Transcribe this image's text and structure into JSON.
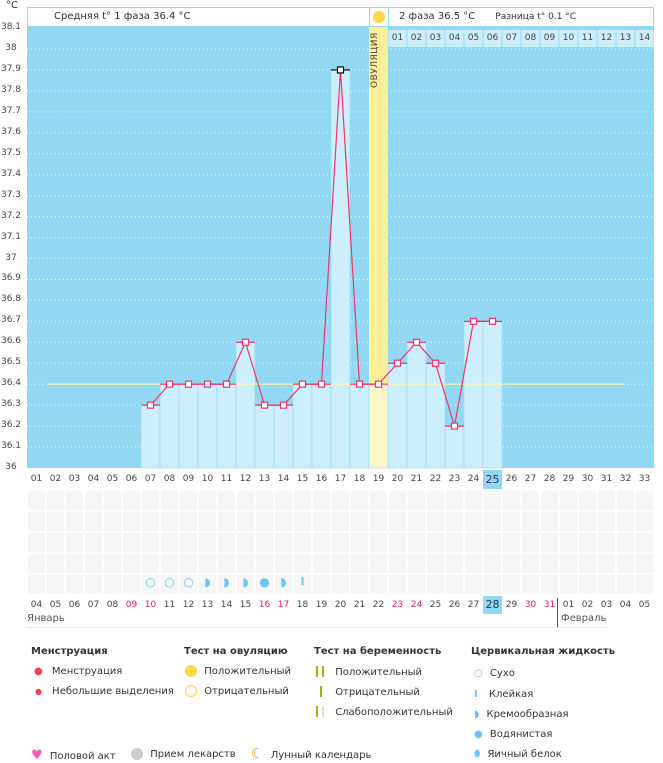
{
  "unit": "°C",
  "header": {
    "phase1_label": "Средняя t° 1 фаза 36.4 °C",
    "phase2_label": "2 фаза 36.5 °C",
    "diff_label": "Разница t° 0.1 °C",
    "ovulation_label": "ОВУЛЯЦИЯ"
  },
  "y_ticks": [
    "38.1",
    "38",
    "37.9",
    "37.8",
    "37.7",
    "37.6",
    "37.5",
    "37.4",
    "37.3",
    "37.2",
    "37.1",
    "37",
    "36.9",
    "36.8",
    "36.7",
    "36.6",
    "36.5",
    "36.4",
    "36.3",
    "36.2",
    "36.1",
    "36"
  ],
  "phase2_days": [
    "01",
    "02",
    "03",
    "04",
    "05",
    "06",
    "07",
    "08",
    "09",
    "10",
    "11",
    "12",
    "13",
    "14"
  ],
  "cycle_days": [
    "01",
    "02",
    "03",
    "04",
    "05",
    "06",
    "07",
    "08",
    "09",
    "10",
    "11",
    "12",
    "13",
    "14",
    "15",
    "16",
    "17",
    "18",
    "19",
    "20",
    "21",
    "22",
    "23",
    "24",
    "25",
    "26",
    "27",
    "28",
    "29",
    "30",
    "31",
    "32",
    "33"
  ],
  "current_cycle_day_index": 24,
  "ovulation_day": 19,
  "coverline": 36.4,
  "temperatures": [
    null,
    null,
    null,
    null,
    null,
    null,
    36.3,
    36.4,
    36.4,
    36.4,
    36.4,
    36.6,
    36.3,
    36.3,
    36.4,
    36.4,
    37.9,
    36.4,
    36.4,
    36.5,
    36.6,
    36.5,
    36.2,
    36.7,
    36.7,
    null,
    null,
    null,
    null,
    null,
    null,
    null,
    null
  ],
  "calendar_dates": [
    "04",
    "05",
    "06",
    "07",
    "08",
    "09",
    "10",
    "11",
    "12",
    "13",
    "14",
    "15",
    "16",
    "17",
    "18",
    "19",
    "20",
    "21",
    "22",
    "23",
    "24",
    "25",
    "26",
    "27",
    "28",
    "29",
    "30",
    "31",
    "01",
    "02",
    "03",
    "04",
    "05"
  ],
  "weekend_flags": [
    0,
    0,
    0,
    0,
    0,
    1,
    1,
    0,
    0,
    0,
    0,
    0,
    1,
    1,
    0,
    0,
    0,
    0,
    0,
    1,
    1,
    0,
    0,
    0,
    0,
    0,
    1,
    1,
    0,
    0,
    0,
    0,
    0
  ],
  "fluid": [
    null,
    null,
    null,
    null,
    null,
    null,
    "dry",
    "dry",
    "dry",
    "creamy",
    "creamy",
    "creamy",
    "watery",
    "creamy",
    "sticky",
    null,
    null,
    null,
    null,
    null,
    null,
    null,
    null,
    null,
    null,
    null,
    null,
    null,
    null,
    null,
    null,
    null,
    null
  ],
  "months": {
    "jan": "Январь",
    "feb": "Февраль"
  },
  "legend": {
    "menstruation": {
      "title": "Менструация",
      "items": [
        "Менструация",
        "Небольшие выделения"
      ]
    },
    "ovulation_test": {
      "title": "Тест на овуляцию",
      "items": [
        "Положительный",
        "Отрицательный"
      ]
    },
    "pregnancy_test": {
      "title": "Тест на беременность",
      "items": [
        "Положительный",
        "Отрицательный",
        "Слабоположительный"
      ]
    },
    "cervical": {
      "title": "Цервикальная жидкость",
      "items": [
        "Сухо",
        "Клейкая",
        "Кремообразная",
        "Водянистая",
        "Яичный белок"
      ]
    },
    "other": [
      "Половой акт",
      "Прием лекарств",
      "Лунный календарь"
    ]
  },
  "colors": {
    "bg": "#93d8f2",
    "bar": "#cdeefc",
    "line": "#f0336a",
    "ovulation": "#fdee9a",
    "weekend": "#e8224a",
    "fluid": "#6ec6f0"
  }
}
